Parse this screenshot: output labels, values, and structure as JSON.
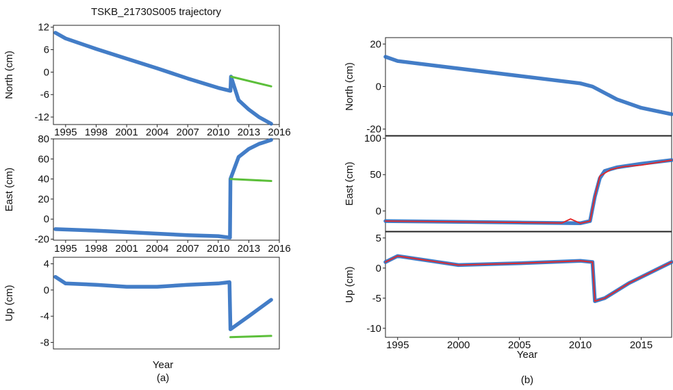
{
  "figure": {
    "title_a": "TSKB_21730S005 trajectory",
    "caption_a": "(a)",
    "caption_b": "(b)",
    "xlabel_a": "Year",
    "xlabel_b": "Year",
    "colors": {
      "observed": "#2f6fc1",
      "trend": "#f0a020",
      "model": "#e62424",
      "extrapolated": "#5cbf3a",
      "fit": "#d7c76a",
      "frame": "#222222"
    }
  },
  "chart_data": [
    {
      "id": "a-north",
      "type": "scatter",
      "ylabel": "North (cm)",
      "xlim": [
        1993.8,
        2016
      ],
      "ylim": [
        -14,
        12.5
      ],
      "xticks": [
        1995,
        1998,
        2001,
        2004,
        2007,
        2010,
        2013,
        2016
      ],
      "yticks": [
        12,
        6,
        0,
        -6,
        -12
      ],
      "series": [
        {
          "role": "observed",
          "x": [
            1994,
            1995,
            1998,
            2001,
            2004,
            2007,
            2010,
            2011.2,
            2011.25,
            2012,
            2013,
            2014,
            2015.2
          ],
          "y": [
            10.5,
            9,
            6.2,
            3.6,
            1,
            -1.7,
            -4.2,
            -5,
            -1.2,
            -7.5,
            -10,
            -12,
            -13.8
          ]
        },
        {
          "role": "extrapolated",
          "x": [
            2011.25,
            2015.2
          ],
          "y": [
            -1.2,
            -3.8
          ]
        }
      ]
    },
    {
      "id": "a-east",
      "type": "scatter",
      "ylabel": "East (cm)",
      "xlim": [
        1993.8,
        2016
      ],
      "ylim": [
        -21,
        80
      ],
      "xticks": [
        1995,
        1998,
        2001,
        2004,
        2007,
        2010,
        2013,
        2016
      ],
      "yticks": [
        80,
        60,
        40,
        20,
        0,
        -20
      ],
      "series": [
        {
          "role": "observed",
          "x": [
            1994,
            1998,
            2001,
            2004,
            2007,
            2010,
            2011.15,
            2011.2,
            2012,
            2013,
            2014,
            2015.2
          ],
          "y": [
            -10,
            -11.5,
            -13,
            -14.5,
            -16,
            -17,
            -18.5,
            40,
            62,
            70,
            75,
            79
          ]
        },
        {
          "role": "extrapolated",
          "x": [
            2011.2,
            2015.2
          ],
          "y": [
            40,
            38
          ]
        }
      ]
    },
    {
      "id": "a-up",
      "type": "scatter",
      "ylabel": "Up (cm)",
      "xlim": [
        1993.8,
        2016
      ],
      "ylim": [
        -9,
        5
      ],
      "xticks": [],
      "yticks": [
        4,
        0,
        -4,
        -8
      ],
      "series": [
        {
          "role": "observed",
          "x": [
            1994,
            1995,
            1998,
            2001,
            2004,
            2007,
            2010,
            2011.1,
            2011.2,
            2013,
            2015.2
          ],
          "y": [
            2,
            1,
            0.8,
            0.5,
            0.5,
            0.8,
            1,
            1.2,
            -6,
            -4,
            -1.5
          ]
        },
        {
          "role": "extrapolated",
          "x": [
            2011.2,
            2015.2
          ],
          "y": [
            -7.2,
            -7
          ]
        }
      ]
    },
    {
      "id": "b-north",
      "type": "line",
      "ylabel": "North (cm)",
      "xlim": [
        1994,
        2017.5
      ],
      "ylim": [
        -23,
        23
      ],
      "xticks": [],
      "yticks": [
        20,
        0,
        -20
      ],
      "series": [
        {
          "role": "observed",
          "x": [
            1994,
            1995,
            2000,
            2005,
            2010,
            2011,
            2013,
            2015,
            2017.5
          ],
          "y": [
            14,
            12,
            8.5,
            5,
            1.5,
            0,
            -6,
            -10,
            -13
          ]
        }
      ]
    },
    {
      "id": "b-east",
      "type": "line",
      "ylabel": "East (cm)",
      "xlim": [
        1994,
        2017.5
      ],
      "ylim": [
        -28,
        103
      ],
      "xticks": [],
      "yticks": [
        100,
        50,
        0
      ],
      "series": [
        {
          "role": "observed",
          "x": [
            1994,
            2000,
            2005,
            2010,
            2010.8,
            2011.2,
            2011.6,
            2012,
            2013,
            2015,
            2017.5
          ],
          "y": [
            -14,
            -15,
            -16,
            -17,
            -14,
            20,
            45,
            55,
            60,
            65,
            70
          ]
        },
        {
          "role": "model",
          "x": [
            1994,
            2008.5,
            2009.2,
            2010,
            2010.8,
            2011.2,
            2011.6,
            2012.5,
            2013.5,
            2015,
            2017.5
          ],
          "y": [
            -14,
            -16.5,
            -11,
            -17,
            -14,
            20,
            48,
            57,
            61,
            63,
            70
          ]
        }
      ]
    },
    {
      "id": "b-up",
      "type": "line",
      "ylabel": "Up (cm)",
      "xlabel": "Year",
      "xlim": [
        1994,
        2017.5
      ],
      "ylim": [
        -11.5,
        6
      ],
      "xticks": [
        1995,
        2000,
        2005,
        2010,
        2015
      ],
      "yticks": [
        5,
        0,
        -5,
        -10
      ],
      "series": [
        {
          "role": "observed",
          "x": [
            1994,
            1995,
            2000,
            2005,
            2010,
            2011,
            2011.2,
            2012,
            2014,
            2017.5
          ],
          "y": [
            1,
            2,
            0.5,
            0.8,
            1.2,
            1,
            -5.5,
            -5,
            -2.5,
            1
          ]
        },
        {
          "role": "model",
          "x": [
            1994,
            1995,
            2000,
            2005,
            2010,
            2011,
            2011.2,
            2012,
            2014,
            2017.5
          ],
          "y": [
            1,
            2,
            0.5,
            0.8,
            1.2,
            1,
            -5.5,
            -5,
            -2.5,
            1
          ]
        }
      ]
    }
  ]
}
